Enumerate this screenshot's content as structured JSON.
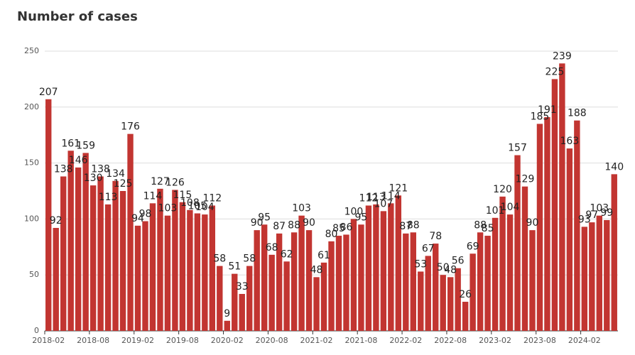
{
  "chart_data": {
    "type": "bar",
    "title": "Number of cases",
    "categories": [
      "2018-02",
      null,
      null,
      null,
      null,
      null,
      "2018-08",
      null,
      null,
      null,
      null,
      null,
      "2019-02",
      null,
      null,
      null,
      null,
      null,
      "2019-08",
      null,
      null,
      null,
      null,
      null,
      "2020-02",
      null,
      null,
      null,
      null,
      null,
      "2020-08",
      null,
      null,
      null,
      null,
      null,
      "2021-02",
      null,
      null,
      null,
      null,
      null,
      "2021-08",
      null,
      null,
      null,
      null,
      null,
      "2022-02",
      null,
      null,
      null,
      null,
      null,
      "2022-08",
      null,
      null,
      null,
      null,
      null,
      "2023-02",
      null,
      null,
      null,
      null,
      null,
      "2023-08",
      null,
      null,
      null,
      null,
      null,
      "2024-02",
      null,
      null,
      null,
      null
    ],
    "values": [
      207,
      92,
      138,
      161,
      146,
      159,
      130,
      138,
      113,
      134,
      125,
      176,
      94,
      98,
      114,
      127,
      103,
      126,
      115,
      108,
      105,
      104,
      112,
      58,
      9,
      51,
      33,
      58,
      90,
      95,
      68,
      87,
      62,
      88,
      103,
      90,
      48,
      61,
      80,
      85,
      86,
      100,
      95,
      112,
      113,
      107,
      114,
      121,
      87,
      88,
      53,
      67,
      78,
      50,
      48,
      56,
      26,
      69,
      88,
      85,
      101,
      120,
      104,
      157,
      129,
      90,
      185,
      191,
      225,
      239,
      163,
      188,
      93,
      97,
      103,
      99,
      140
    ],
    "color": "#c23531",
    "ylim": [
      0,
      250
    ],
    "yticks": [
      0,
      50,
      100,
      150,
      200,
      250
    ],
    "grid": true
  }
}
